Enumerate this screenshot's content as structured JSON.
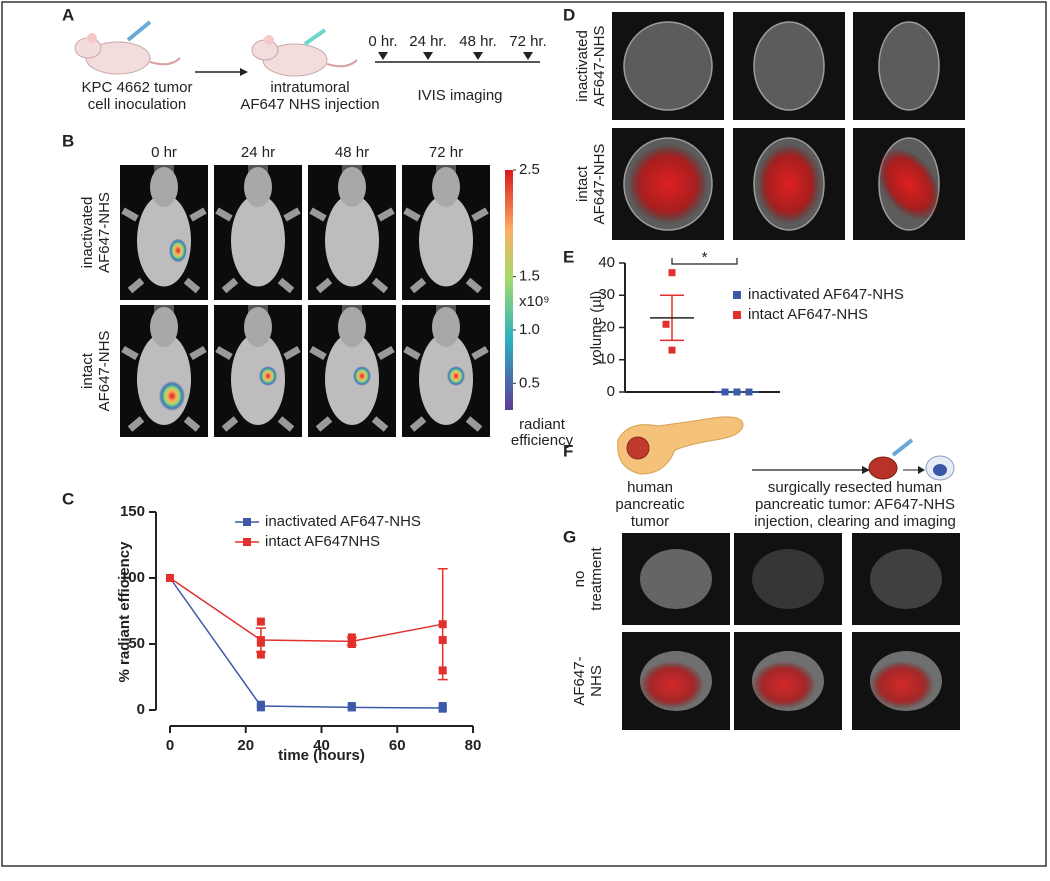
{
  "panels": {
    "A": {
      "letter": "A",
      "step1": [
        "KPC 4662 tumor",
        "cell inoculation"
      ],
      "step2": [
        "intratumoral",
        "AF647 NHS injection"
      ],
      "timepoints": [
        "0 hr.",
        "24 hr.",
        "48 hr.",
        "72 hr."
      ],
      "step3": "IVIS imaging"
    },
    "B": {
      "letter": "B",
      "columns": [
        "0 hr",
        "24 hr",
        "48 hr",
        "72 hr"
      ],
      "rows": [
        [
          "inactivated",
          "AF647-NHS"
        ],
        [
          "intact",
          "AF647-NHS"
        ]
      ],
      "colorbar": {
        "range": [
          0.25,
          2.5
        ],
        "ticks": [
          2.5,
          1.5,
          {
            "value": 1,
            "label": "1.0"
          },
          0.5
        ],
        "multiplier": "x10⁹",
        "label": [
          "radiant",
          "efficiency"
        ]
      }
    },
    "C": {
      "letter": "C"
    },
    "D": {
      "letter": "D",
      "rows": [
        [
          "inactivated",
          "AF647-NHS"
        ],
        [
          "intact",
          "AF647-NHS"
        ]
      ]
    },
    "E": {
      "letter": "E",
      "significance": "*"
    },
    "F": {
      "letter": "F",
      "left": [
        "human",
        "pancreatic",
        "tumor"
      ],
      "right": [
        "surgically resected human",
        "pancreatic tumor: AF647-NHS",
        "injection, clearing and imaging"
      ]
    },
    "G": {
      "letter": "G",
      "rows": [
        [
          "no",
          "treatment"
        ],
        [
          "AF647-",
          "NHS"
        ]
      ]
    }
  },
  "chart_data": [
    {
      "type": "line",
      "xlabel": "time (hours)",
      "ylabel": "% radiant efficiency",
      "x": [
        0,
        24,
        48,
        72
      ],
      "xlim": [
        0,
        80
      ],
      "ylim": [
        0,
        150
      ],
      "xticks": [
        0,
        20,
        40,
        60,
        80
      ],
      "yticks": [
        0,
        50,
        100,
        150
      ],
      "legend": "upper right",
      "series": [
        {
          "name": "inactivated AF647-NHS",
          "color": "#3c5aa8",
          "values": [
            100,
            3,
            2,
            1.5
          ],
          "points": [
            [
              24,
              4
            ],
            [
              24,
              2
            ],
            [
              48,
              2
            ],
            [
              48,
              3
            ],
            [
              72,
              1
            ],
            [
              72,
              3
            ]
          ]
        },
        {
          "name": "intact AF647NHS",
          "color": "#e3302d",
          "values": [
            100,
            53,
            52,
            65
          ],
          "errors": [
            null,
            9,
            3,
            42
          ],
          "points": [
            [
              24,
              67
            ],
            [
              24,
              51
            ],
            [
              24,
              42
            ],
            [
              48,
              55
            ],
            [
              48,
              50
            ],
            [
              48,
              52
            ],
            [
              72,
              53
            ],
            [
              72,
              30
            ]
          ]
        }
      ]
    },
    {
      "type": "dot",
      "ylabel": "volume (µl)",
      "ylim": [
        0,
        40
      ],
      "yticks": [
        0,
        10,
        20,
        30,
        40
      ],
      "series": [
        {
          "name": "inactivated AF647-NHS",
          "color": "#3c5aa8",
          "values": [
            0,
            0,
            0
          ],
          "mean": 0
        },
        {
          "name": "intact AF647-NHS",
          "color": "#e3302d",
          "values": [
            37,
            21,
            13
          ],
          "mean": 23,
          "error": 7
        }
      ]
    }
  ]
}
